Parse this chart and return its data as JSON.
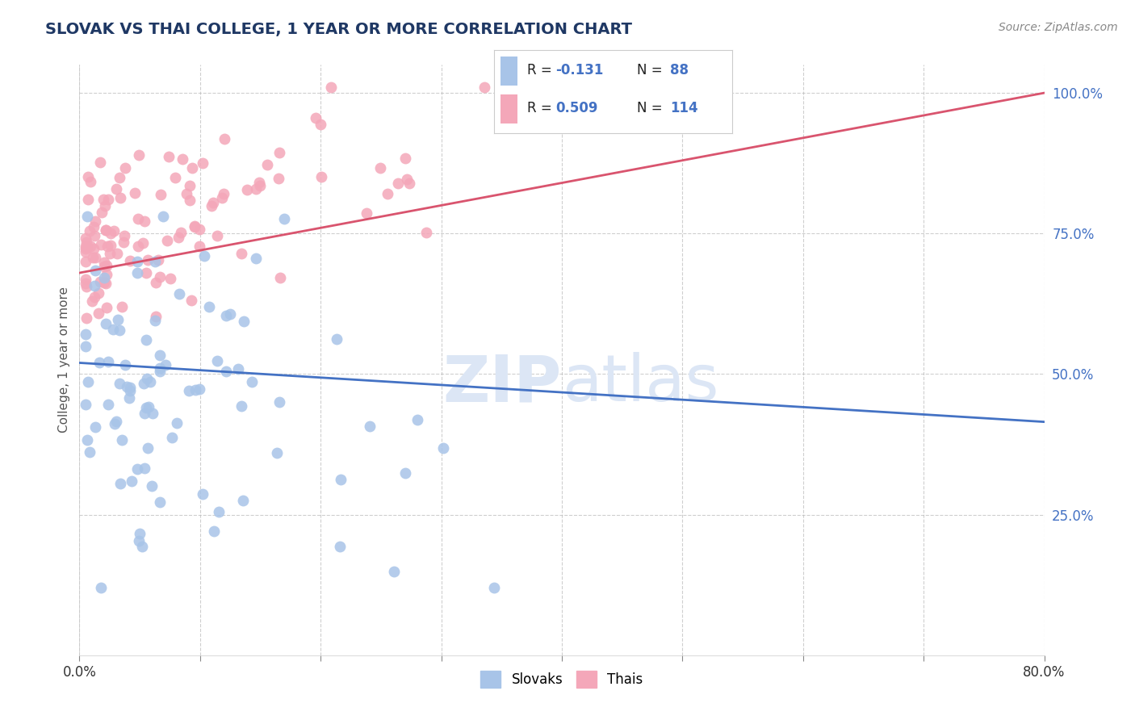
{
  "title": "SLOVAK VS THAI COLLEGE, 1 YEAR OR MORE CORRELATION CHART",
  "source_text": "Source: ZipAtlas.com",
  "ylabel": "College, 1 year or more",
  "xlim": [
    0.0,
    0.8
  ],
  "ylim": [
    0.0,
    1.05
  ],
  "xtick_positions": [
    0.0,
    0.1,
    0.2,
    0.3,
    0.4,
    0.5,
    0.6,
    0.7,
    0.8
  ],
  "xticklabels": [
    "0.0%",
    "",
    "",
    "",
    "",
    "",
    "",
    "",
    "80.0%"
  ],
  "ytick_positions": [
    0.25,
    0.5,
    0.75,
    1.0
  ],
  "ytick_labels": [
    "25.0%",
    "50.0%",
    "75.0%",
    "100.0%"
  ],
  "slovak_R": -0.131,
  "slovak_N": 88,
  "thai_R": 0.509,
  "thai_N": 114,
  "slovak_color": "#a8c4e8",
  "thai_color": "#f4a7b9",
  "slovak_line_color": "#4472c4",
  "thai_line_color": "#d9546e",
  "background_color": "#ffffff",
  "grid_color": "#bbbbbb",
  "title_color": "#1f3864",
  "watermark_color": "#dce6f5",
  "tick_label_color": "#4472c4",
  "legend_r_color": "#4472c4",
  "legend_n_color": "#4472c4",
  "slovak_line_y0": 0.52,
  "slovak_line_y1": 0.415,
  "thai_line_y0": 0.68,
  "thai_line_y1": 1.0
}
